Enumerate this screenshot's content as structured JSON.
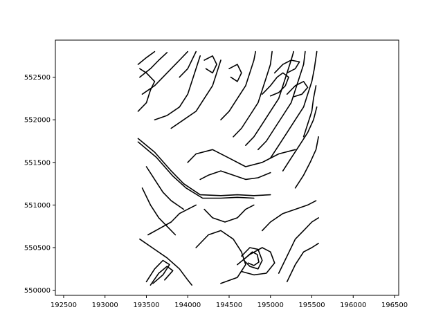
{
  "chart_data": {
    "type": "line",
    "title": "",
    "xlabel": "",
    "ylabel": "",
    "xlim": [
      192400,
      196550
    ],
    "ylim": [
      549940,
      552935
    ],
    "grid": false,
    "legend": "none",
    "line_color": "#000000",
    "x_ticks": [
      {
        "value": 192500,
        "label": "192500"
      },
      {
        "value": 193000,
        "label": "193000"
      },
      {
        "value": 193500,
        "label": "193500"
      },
      {
        "value": 194000,
        "label": "194000"
      },
      {
        "value": 194500,
        "label": "194500"
      },
      {
        "value": 195000,
        "label": "195000"
      },
      {
        "value": 195500,
        "label": "195500"
      },
      {
        "value": 196000,
        "label": "196000"
      },
      {
        "value": 196500,
        "label": "196500"
      }
    ],
    "y_ticks": [
      {
        "value": 550000,
        "label": "550000"
      },
      {
        "value": 550500,
        "label": "550500"
      },
      {
        "value": 551000,
        "label": "551000"
      },
      {
        "value": 551500,
        "label": "551500"
      },
      {
        "value": 552000,
        "label": "552000"
      },
      {
        "value": 552500,
        "label": "552500"
      }
    ],
    "series": [
      {
        "values": [
          [
            193400,
            551780
          ],
          [
            193600,
            551620
          ],
          [
            193800,
            551400
          ],
          [
            193950,
            551250
          ],
          [
            194150,
            551120
          ],
          [
            194400,
            551110
          ],
          [
            194600,
            551120
          ],
          [
            194800,
            551110
          ],
          [
            195000,
            551120
          ]
        ]
      },
      {
        "values": [
          [
            193400,
            551740
          ],
          [
            193620,
            551560
          ],
          [
            193820,
            551340
          ],
          [
            193980,
            551200
          ],
          [
            194180,
            551080
          ],
          [
            194400,
            551080
          ],
          [
            194600,
            551090
          ],
          [
            194800,
            551080
          ]
        ]
      },
      {
        "values": [
          [
            193420,
            550600
          ],
          [
            193600,
            550480
          ],
          [
            193750,
            550380
          ],
          [
            193900,
            550250
          ],
          [
            194000,
            550120
          ],
          [
            194050,
            550060
          ]
        ]
      },
      {
        "values": [
          [
            193500,
            550100
          ],
          [
            193600,
            550250
          ],
          [
            193700,
            550350
          ],
          [
            193780,
            550300
          ],
          [
            193700,
            550180
          ],
          [
            193580,
            550080
          ]
        ]
      },
      {
        "values": [
          [
            193550,
            550060
          ],
          [
            193650,
            550200
          ],
          [
            193750,
            550280
          ],
          [
            193820,
            550230
          ],
          [
            193720,
            550120
          ]
        ]
      },
      {
        "values": [
          [
            193520,
            550650
          ],
          [
            193650,
            550720
          ],
          [
            193800,
            550800
          ],
          [
            193900,
            550900
          ],
          [
            194000,
            550950
          ],
          [
            194100,
            551000
          ]
        ]
      },
      {
        "values": [
          [
            194100,
            550500
          ],
          [
            194250,
            550650
          ],
          [
            194400,
            550700
          ],
          [
            194550,
            550600
          ],
          [
            194650,
            550450
          ],
          [
            194700,
            550300
          ],
          [
            194600,
            550150
          ],
          [
            194400,
            550080
          ]
        ]
      },
      {
        "values": [
          [
            194650,
            550400
          ],
          [
            194750,
            550500
          ],
          [
            194850,
            550480
          ],
          [
            194900,
            550350
          ],
          [
            194850,
            550250
          ],
          [
            194750,
            550280
          ],
          [
            194680,
            550350
          ]
        ]
      },
      {
        "values": [
          [
            194700,
            550380
          ],
          [
            194780,
            550450
          ],
          [
            194840,
            550420
          ],
          [
            194860,
            550330
          ],
          [
            194800,
            550290
          ],
          [
            194730,
            550320
          ]
        ]
      },
      {
        "values": [
          [
            194600,
            550300
          ],
          [
            194750,
            550420
          ],
          [
            194900,
            550500
          ],
          [
            195000,
            550450
          ],
          [
            195050,
            550320
          ],
          [
            194950,
            550200
          ],
          [
            194800,
            550180
          ],
          [
            194650,
            550220
          ]
        ]
      },
      {
        "values": [
          [
            194900,
            550700
          ],
          [
            195000,
            550800
          ],
          [
            195150,
            550900
          ],
          [
            195300,
            550950
          ],
          [
            195450,
            551000
          ],
          [
            195550,
            551050
          ]
        ]
      },
      {
        "values": [
          [
            195100,
            550200
          ],
          [
            195200,
            550400
          ],
          [
            195300,
            550600
          ],
          [
            195400,
            550700
          ],
          [
            195500,
            550800
          ],
          [
            195580,
            550850
          ]
        ]
      },
      {
        "values": [
          [
            195200,
            550100
          ],
          [
            195300,
            550300
          ],
          [
            195400,
            550450
          ],
          [
            195500,
            550500
          ],
          [
            195580,
            550550
          ]
        ]
      },
      {
        "values": [
          [
            194000,
            551500
          ],
          [
            194100,
            551600
          ],
          [
            194300,
            551650
          ],
          [
            194500,
            551550
          ],
          [
            194700,
            551450
          ],
          [
            194900,
            551500
          ],
          [
            195100,
            551600
          ],
          [
            195300,
            551650
          ]
        ]
      },
      {
        "values": [
          [
            193600,
            552000
          ],
          [
            193750,
            552050
          ],
          [
            193900,
            552150
          ],
          [
            194000,
            552300
          ],
          [
            194050,
            552450
          ],
          [
            194100,
            552600
          ],
          [
            194150,
            552750
          ]
        ]
      },
      {
        "values": [
          [
            193800,
            551900
          ],
          [
            193950,
            552000
          ],
          [
            194100,
            552100
          ],
          [
            194200,
            552250
          ],
          [
            194300,
            552400
          ],
          [
            194350,
            552550
          ],
          [
            194400,
            552700
          ]
        ]
      },
      {
        "values": [
          [
            193450,
            552300
          ],
          [
            193600,
            552400
          ],
          [
            193700,
            552500
          ],
          [
            193800,
            552600
          ],
          [
            193900,
            552700
          ],
          [
            194000,
            552800
          ]
        ]
      },
      {
        "values": [
          [
            193420,
            552500
          ],
          [
            193550,
            552600
          ],
          [
            193650,
            552700
          ],
          [
            193750,
            552790
          ]
        ]
      },
      {
        "values": [
          [
            193400,
            552650
          ],
          [
            193500,
            552730
          ],
          [
            193600,
            552800
          ]
        ]
      },
      {
        "values": [
          [
            193400,
            552100
          ],
          [
            193500,
            552200
          ],
          [
            193550,
            552350
          ],
          [
            193600,
            552450
          ],
          [
            193500,
            552550
          ],
          [
            193420,
            552600
          ]
        ]
      },
      {
        "values": [
          [
            194400,
            552000
          ],
          [
            194500,
            552100
          ],
          [
            194600,
            552250
          ],
          [
            194700,
            552400
          ],
          [
            194750,
            552550
          ],
          [
            194800,
            552700
          ],
          [
            194820,
            552800
          ]
        ]
      },
      {
        "values": [
          [
            194550,
            551800
          ],
          [
            194650,
            551900
          ],
          [
            194750,
            552050
          ],
          [
            194850,
            552200
          ],
          [
            194900,
            552350
          ],
          [
            194950,
            552500
          ],
          [
            195000,
            552650
          ],
          [
            195020,
            552800
          ]
        ]
      },
      {
        "values": [
          [
            194700,
            551700
          ],
          [
            194800,
            551800
          ],
          [
            194900,
            551950
          ],
          [
            195000,
            552100
          ],
          [
            195100,
            552250
          ],
          [
            195150,
            552400
          ],
          [
            195200,
            552550
          ],
          [
            195250,
            552700
          ],
          [
            195280,
            552800
          ]
        ]
      },
      {
        "values": [
          [
            194850,
            551650
          ],
          [
            194950,
            551750
          ],
          [
            195050,
            551900
          ],
          [
            195150,
            552050
          ],
          [
            195250,
            552200
          ],
          [
            195300,
            552350
          ],
          [
            195350,
            552500
          ],
          [
            195400,
            552650
          ],
          [
            195420,
            552800
          ]
        ]
      },
      {
        "values": [
          [
            195000,
            551550
          ],
          [
            195100,
            551700
          ],
          [
            195200,
            551850
          ],
          [
            195300,
            552000
          ],
          [
            195400,
            552150
          ],
          [
            195450,
            552300
          ],
          [
            195500,
            552450
          ],
          [
            195530,
            552600
          ],
          [
            195560,
            552800
          ]
        ]
      },
      {
        "values": [
          [
            195150,
            551400
          ],
          [
            195250,
            551550
          ],
          [
            195350,
            551700
          ],
          [
            195450,
            551850
          ],
          [
            195520,
            552000
          ],
          [
            195560,
            552150
          ]
        ]
      },
      {
        "values": [
          [
            195300,
            551200
          ],
          [
            195400,
            551350
          ],
          [
            195480,
            551500
          ],
          [
            195550,
            551650
          ],
          [
            195580,
            551800
          ]
        ]
      },
      {
        "values": [
          [
            194900,
            552300
          ],
          [
            195000,
            552400
          ],
          [
            195080,
            552500
          ],
          [
            195150,
            552550
          ],
          [
            195220,
            552500
          ],
          [
            195180,
            552400
          ],
          [
            195100,
            552320
          ],
          [
            195000,
            552280
          ]
        ]
      },
      {
        "values": [
          [
            195050,
            552550
          ],
          [
            195150,
            552650
          ],
          [
            195250,
            552700
          ],
          [
            195350,
            552680
          ],
          [
            195300,
            552600
          ],
          [
            195200,
            552550
          ]
        ]
      },
      {
        "values": [
          [
            195200,
            552300
          ],
          [
            195300,
            552400
          ],
          [
            195400,
            552450
          ],
          [
            195450,
            552380
          ],
          [
            195380,
            552300
          ],
          [
            195280,
            552270
          ]
        ]
      },
      {
        "values": [
          [
            194500,
            552600
          ],
          [
            194600,
            552650
          ],
          [
            194650,
            552550
          ],
          [
            194600,
            552450
          ],
          [
            194520,
            552500
          ]
        ]
      },
      {
        "values": [
          [
            194150,
            551300
          ],
          [
            194250,
            551350
          ],
          [
            194400,
            551400
          ],
          [
            194550,
            551350
          ],
          [
            194700,
            551300
          ],
          [
            194850,
            551320
          ],
          [
            195000,
            551380
          ]
        ]
      },
      {
        "values": [
          [
            194200,
            550950
          ],
          [
            194300,
            550850
          ],
          [
            194450,
            550800
          ],
          [
            194600,
            550850
          ],
          [
            194700,
            550950
          ],
          [
            194800,
            551000
          ]
        ]
      },
      {
        "values": [
          [
            193450,
            551200
          ],
          [
            193550,
            551000
          ],
          [
            193650,
            550850
          ],
          [
            193750,
            550750
          ],
          [
            193850,
            550650
          ]
        ]
      },
      {
        "values": [
          [
            193500,
            551450
          ],
          [
            193600,
            551300
          ],
          [
            193700,
            551150
          ],
          [
            193800,
            551050
          ],
          [
            193950,
            550950
          ]
        ]
      },
      {
        "values": [
          [
            195400,
            551800
          ],
          [
            195450,
            551950
          ],
          [
            195500,
            552100
          ],
          [
            195520,
            552250
          ],
          [
            195550,
            552400
          ]
        ]
      },
      {
        "values": [
          [
            193900,
            552500
          ],
          [
            194000,
            552600
          ],
          [
            194050,
            552700
          ],
          [
            194100,
            552800
          ]
        ]
      },
      {
        "values": [
          [
            194200,
            552700
          ],
          [
            194300,
            552750
          ],
          [
            194350,
            552650
          ],
          [
            194300,
            552550
          ],
          [
            194220,
            552600
          ]
        ]
      }
    ]
  }
}
